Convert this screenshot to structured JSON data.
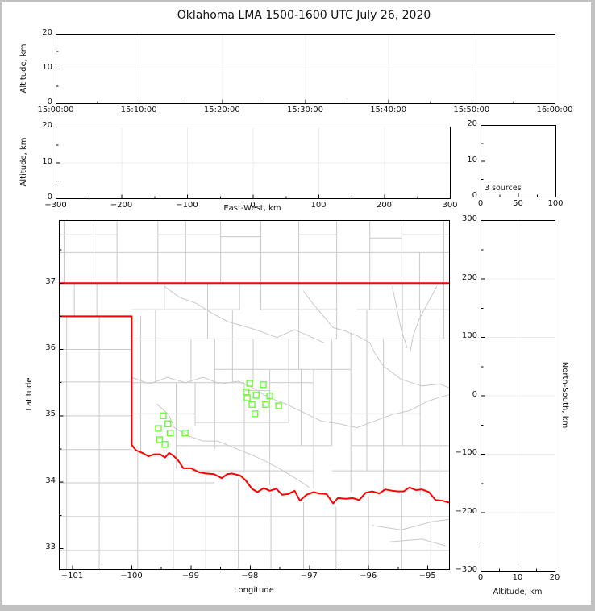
{
  "title": "Oklahoma LMA 1500-1600 UTC July 26, 2020",
  "colors": {
    "source_marker": "#66ff33",
    "state_boundary": "#ff0000",
    "county_lines": "#c9c9c9",
    "gridline": "#ececec",
    "axes": "#000000",
    "frame_background": "#c1c1c1",
    "panel_background": "#ffffff"
  },
  "chart_data": [
    {
      "id": "time_height_panel",
      "type": "scatter",
      "ylabel": "Altitude, km",
      "xlabel": "",
      "xlim": [
        0,
        3600
      ],
      "xticks": [
        0,
        600,
        1200,
        1800,
        2400,
        3000,
        3600
      ],
      "xlabels": [
        "15:00:00",
        "15:10:00",
        "15:20:00",
        "15:30:00",
        "15:40:00",
        "15:50:00",
        "16:00:00"
      ],
      "xminors": [
        300,
        900,
        1500,
        2100,
        2700,
        3300
      ],
      "ylim": [
        0,
        20
      ],
      "yticks": [
        0,
        10,
        20
      ],
      "ytlabels": [
        "0",
        "10",
        "20"
      ],
      "yminors": [
        5,
        15
      ],
      "grid": true,
      "points": []
    },
    {
      "id": "eastwest_height_panel",
      "type": "scatter",
      "ylabel": "Altitude, km",
      "xlabel": "East-West, km",
      "xlim": [
        -300,
        300
      ],
      "xticks": [
        -300,
        -200,
        -100,
        0,
        100,
        200,
        300
      ],
      "xlabels": [
        "−300",
        "−200",
        "−100",
        "0",
        "100",
        "200",
        "300"
      ],
      "xminors": [
        -250,
        -150,
        -50,
        50,
        150,
        250
      ],
      "ylim": [
        0,
        20
      ],
      "yticks": [
        0,
        10,
        20
      ],
      "ytlabels": [
        "0",
        "10",
        "20"
      ],
      "yminors": [
        5,
        15
      ],
      "grid": true,
      "points": []
    },
    {
      "id": "altitude_histogram_panel",
      "type": "scatter",
      "ylabel": "",
      "xlabel": "",
      "annotation": "3 sources",
      "xlim": [
        0,
        100
      ],
      "xticks": [
        0,
        50,
        100
      ],
      "xlabels": [
        "0",
        "50",
        "100"
      ],
      "xminors": [
        25,
        75
      ],
      "ylim": [
        0,
        20
      ],
      "yticks": [
        0,
        10,
        20
      ],
      "ytlabels": [
        "0",
        "10",
        "20"
      ],
      "yminors": [
        5,
        15
      ],
      "grid": false,
      "points": []
    },
    {
      "id": "plan_view_map_panel",
      "type": "scatter",
      "ylabel": "Latitude",
      "xlabel": "Longitude",
      "xlim": [
        -101.225,
        -94.635
      ],
      "xticks": [
        -101,
        -100,
        -99,
        -98,
        -97,
        -96,
        -95
      ],
      "xlabels": [
        "−101",
        "−100",
        "−99",
        "−98",
        "−97",
        "−96",
        "−95"
      ],
      "xminors": [
        -100.5,
        -99.5,
        -98.5,
        -97.5,
        -96.5,
        -95.5
      ],
      "ylim": [
        32.683,
        37.945
      ],
      "yticks": [
        33,
        34,
        35,
        36,
        37
      ],
      "ytlabels": [
        "33",
        "34",
        "35",
        "36",
        "37"
      ],
      "yminors": [
        33.5,
        34.5,
        35.5,
        36.5,
        37.5
      ],
      "grid": false,
      "marker": "open-square",
      "marker_color": "#66ff33",
      "marker_size_px": 7,
      "points": [
        {
          "lon": -98.01,
          "lat": 35.49
        },
        {
          "lon": -97.78,
          "lat": 35.47
        },
        {
          "lon": -98.07,
          "lat": 35.36
        },
        {
          "lon": -97.9,
          "lat": 35.31
        },
        {
          "lon": -98.05,
          "lat": 35.27
        },
        {
          "lon": -97.67,
          "lat": 35.3
        },
        {
          "lon": -97.97,
          "lat": 35.17
        },
        {
          "lon": -97.74,
          "lat": 35.17
        },
        {
          "lon": -97.52,
          "lat": 35.15
        },
        {
          "lon": -97.92,
          "lat": 35.03
        },
        {
          "lon": -99.47,
          "lat": 35.0
        },
        {
          "lon": -99.39,
          "lat": 34.88
        },
        {
          "lon": -99.55,
          "lat": 34.81
        },
        {
          "lon": -99.35,
          "lat": 34.74
        },
        {
          "lon": -99.53,
          "lat": 34.64
        },
        {
          "lon": -99.44,
          "lat": 34.57
        },
        {
          "lon": -99.1,
          "lat": 34.74
        }
      ]
    },
    {
      "id": "northsouth_height_panel",
      "type": "scatter",
      "ylabel": "North-South, km",
      "xlabel": "Altitude, km",
      "xlim": [
        0,
        20
      ],
      "xticks": [
        0,
        10,
        20
      ],
      "xlabels": [
        "0",
        "10",
        "20"
      ],
      "xminors": [
        5,
        15
      ],
      "ylim": [
        -300,
        300
      ],
      "yticks": [
        300,
        200,
        100,
        0,
        -100,
        -200,
        -300
      ],
      "ytlabels": [
        "300",
        "200",
        "100",
        "0",
        "−100",
        "−200",
        "−300"
      ],
      "yminors": [
        -250,
        -150,
        -50,
        50,
        150,
        250
      ],
      "grid": true,
      "points": []
    }
  ]
}
